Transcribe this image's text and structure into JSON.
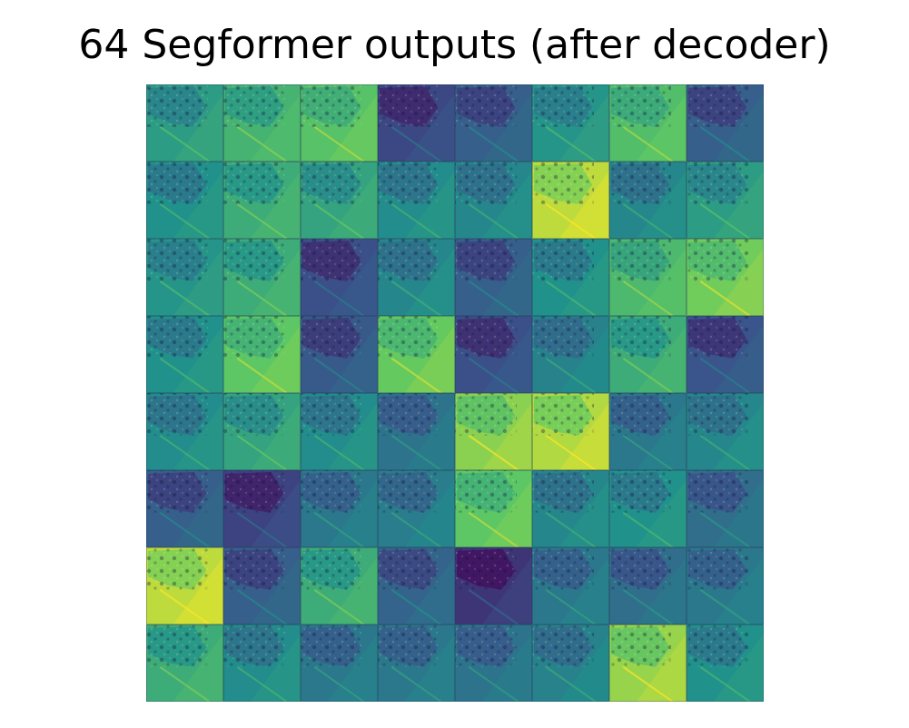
{
  "title": "64 Segformer outputs (after decoder)",
  "grid": {
    "rows": 8,
    "cols": 8,
    "colormap": "viridis",
    "tile_brightness": [
      [
        0.55,
        0.65,
        0.72,
        0.22,
        0.3,
        0.52,
        0.7,
        0.3
      ],
      [
        0.5,
        0.62,
        0.58,
        0.48,
        0.46,
        0.9,
        0.46,
        0.55
      ],
      [
        0.52,
        0.62,
        0.24,
        0.46,
        0.3,
        0.5,
        0.68,
        0.78
      ],
      [
        0.5,
        0.74,
        0.28,
        0.76,
        0.24,
        0.44,
        0.62,
        0.26
      ],
      [
        0.48,
        0.58,
        0.48,
        0.38,
        0.82,
        0.88,
        0.4,
        0.46
      ],
      [
        0.3,
        0.2,
        0.4,
        0.42,
        0.74,
        0.46,
        0.5,
        0.36
      ],
      [
        0.9,
        0.3,
        0.62,
        0.32,
        0.16,
        0.4,
        0.36,
        0.4
      ],
      [
        0.62,
        0.48,
        0.4,
        0.4,
        0.38,
        0.44,
        0.84,
        0.5
      ]
    ]
  }
}
